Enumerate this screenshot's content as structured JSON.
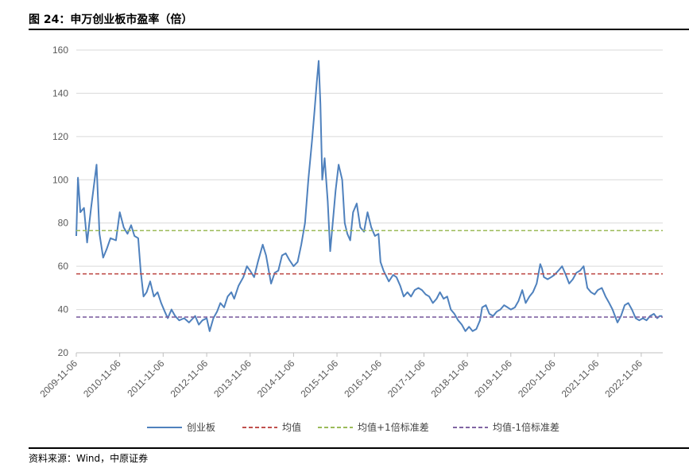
{
  "figure": {
    "title": "图 24：申万创业板市盈率（倍）",
    "source": "资料来源：Wind，中原证券"
  },
  "colors": {
    "series": "#4f81bd",
    "mean": "#c0504d",
    "plus1": "#9bbb59",
    "minus1": "#8064a2",
    "grid": "#d9d9d9"
  },
  "chart_data": {
    "type": "line",
    "ylim": [
      20,
      160
    ],
    "yticks": [
      20,
      40,
      60,
      80,
      100,
      120,
      140,
      160
    ],
    "xlim": [
      "2009-11-06",
      "2023-05-06"
    ],
    "xticks": [
      "2009-11-06",
      "2010-11-06",
      "2011-11-06",
      "2012-11-06",
      "2013-11-06",
      "2014-11-06",
      "2015-11-06",
      "2016-11-06",
      "2017-11-06",
      "2018-11-06",
      "2019-11-06",
      "2020-11-06",
      "2021-11-06",
      "2022-11-06"
    ],
    "grid": "horizontal",
    "legend_position": "bottom",
    "series": [
      {
        "name": "创业板",
        "style": "solid",
        "points": [
          [
            "2009-11-06",
            74
          ],
          [
            "2009-11-20",
            101
          ],
          [
            "2009-12-10",
            85
          ],
          [
            "2010-01-10",
            87
          ],
          [
            "2010-02-05",
            71
          ],
          [
            "2010-03-10",
            87
          ],
          [
            "2010-04-25",
            107
          ],
          [
            "2010-05-20",
            75
          ],
          [
            "2010-06-20",
            64
          ],
          [
            "2010-07-20",
            68
          ],
          [
            "2010-08-20",
            73
          ],
          [
            "2010-10-05",
            72
          ],
          [
            "2010-11-06",
            85
          ],
          [
            "2010-12-10",
            78
          ],
          [
            "2011-01-10",
            75
          ],
          [
            "2011-02-10",
            79
          ],
          [
            "2011-03-10",
            74
          ],
          [
            "2011-04-10",
            73
          ],
          [
            "2011-05-01",
            58
          ],
          [
            "2011-05-25",
            46
          ],
          [
            "2011-06-20",
            48
          ],
          [
            "2011-07-20",
            53
          ],
          [
            "2011-08-20",
            46
          ],
          [
            "2011-09-20",
            48
          ],
          [
            "2011-10-20",
            43
          ],
          [
            "2011-11-20",
            39
          ],
          [
            "2011-12-15",
            36
          ],
          [
            "2012-01-15",
            40
          ],
          [
            "2012-02-15",
            37
          ],
          [
            "2012-03-20",
            35
          ],
          [
            "2012-05-01",
            36
          ],
          [
            "2012-06-10",
            34
          ],
          [
            "2012-08-01",
            37
          ],
          [
            "2012-09-01",
            33
          ],
          [
            "2012-10-01",
            35
          ],
          [
            "2012-11-06",
            36
          ],
          [
            "2012-12-01",
            30
          ],
          [
            "2013-01-01",
            36
          ],
          [
            "2013-02-01",
            39
          ],
          [
            "2013-03-01",
            43
          ],
          [
            "2013-04-01",
            41
          ],
          [
            "2013-05-01",
            46
          ],
          [
            "2013-06-01",
            48
          ],
          [
            "2013-06-25",
            45
          ],
          [
            "2013-08-01",
            51
          ],
          [
            "2013-09-10",
            55
          ],
          [
            "2013-10-10",
            60
          ],
          [
            "2013-11-06",
            58
          ],
          [
            "2013-12-10",
            55
          ],
          [
            "2014-01-10",
            62
          ],
          [
            "2014-02-20",
            70
          ],
          [
            "2014-03-20",
            65
          ],
          [
            "2014-05-01",
            52
          ],
          [
            "2014-06-01",
            57
          ],
          [
            "2014-07-01",
            58
          ],
          [
            "2014-08-01",
            65
          ],
          [
            "2014-09-01",
            66
          ],
          [
            "2014-10-01",
            63
          ],
          [
            "2014-11-06",
            60
          ],
          [
            "2014-12-10",
            62
          ],
          [
            "2015-01-10",
            70
          ],
          [
            "2015-02-10",
            80
          ],
          [
            "2015-03-10",
            100
          ],
          [
            "2015-04-10",
            118
          ],
          [
            "2015-05-01",
            132
          ],
          [
            "2015-05-20",
            145
          ],
          [
            "2015-06-05",
            155
          ],
          [
            "2015-06-20",
            135
          ],
          [
            "2015-07-05",
            100
          ],
          [
            "2015-07-25",
            110
          ],
          [
            "2015-08-20",
            90
          ],
          [
            "2015-09-10",
            67
          ],
          [
            "2015-10-01",
            80
          ],
          [
            "2015-10-25",
            95
          ],
          [
            "2015-11-20",
            107
          ],
          [
            "2015-12-20",
            100
          ],
          [
            "2016-01-10",
            80
          ],
          [
            "2016-02-01",
            75
          ],
          [
            "2016-02-25",
            72
          ],
          [
            "2016-03-20",
            85
          ],
          [
            "2016-04-20",
            89
          ],
          [
            "2016-05-20",
            78
          ],
          [
            "2016-06-20",
            76
          ],
          [
            "2016-07-20",
            85
          ],
          [
            "2016-08-20",
            78
          ],
          [
            "2016-09-20",
            74
          ],
          [
            "2016-10-20",
            75
          ],
          [
            "2016-11-06",
            62
          ],
          [
            "2016-12-01",
            58
          ],
          [
            "2017-01-15",
            53
          ],
          [
            "2017-02-20",
            56
          ],
          [
            "2017-03-20",
            55
          ],
          [
            "2017-04-20",
            51
          ],
          [
            "2017-05-20",
            46
          ],
          [
            "2017-06-20",
            48
          ],
          [
            "2017-07-20",
            46
          ],
          [
            "2017-08-20",
            49
          ],
          [
            "2017-09-20",
            50
          ],
          [
            "2017-10-20",
            49
          ],
          [
            "2017-11-20",
            47
          ],
          [
            "2017-12-20",
            46
          ],
          [
            "2018-01-20",
            43
          ],
          [
            "2018-02-20",
            45
          ],
          [
            "2018-03-20",
            48
          ],
          [
            "2018-04-20",
            45
          ],
          [
            "2018-05-20",
            46
          ],
          [
            "2018-06-20",
            40
          ],
          [
            "2018-07-20",
            38
          ],
          [
            "2018-08-20",
            35
          ],
          [
            "2018-09-20",
            33
          ],
          [
            "2018-10-20",
            30
          ],
          [
            "2018-11-20",
            32
          ],
          [
            "2018-12-20",
            30
          ],
          [
            "2019-01-20",
            31
          ],
          [
            "2019-02-20",
            35
          ],
          [
            "2019-03-10",
            41
          ],
          [
            "2019-04-10",
            42
          ],
          [
            "2019-05-10",
            38
          ],
          [
            "2019-06-10",
            37
          ],
          [
            "2019-07-10",
            39
          ],
          [
            "2019-08-10",
            40
          ],
          [
            "2019-09-10",
            42
          ],
          [
            "2019-10-10",
            41
          ],
          [
            "2019-11-06",
            40
          ],
          [
            "2019-12-10",
            41
          ],
          [
            "2020-01-10",
            44
          ],
          [
            "2020-02-10",
            49
          ],
          [
            "2020-03-10",
            43
          ],
          [
            "2020-04-10",
            46
          ],
          [
            "2020-05-10",
            48
          ],
          [
            "2020-06-10",
            52
          ],
          [
            "2020-07-10",
            61
          ],
          [
            "2020-07-25",
            59
          ],
          [
            "2020-08-10",
            55
          ],
          [
            "2020-09-10",
            54
          ],
          [
            "2020-10-10",
            55
          ],
          [
            "2020-11-06",
            56
          ],
          [
            "2020-12-10",
            58
          ],
          [
            "2021-01-10",
            60
          ],
          [
            "2021-02-10",
            56
          ],
          [
            "2021-03-10",
            52
          ],
          [
            "2021-04-10",
            54
          ],
          [
            "2021-05-10",
            57
          ],
          [
            "2021-06-10",
            58
          ],
          [
            "2021-07-10",
            60
          ],
          [
            "2021-08-10",
            50
          ],
          [
            "2021-09-10",
            48
          ],
          [
            "2021-10-10",
            47
          ],
          [
            "2021-11-06",
            49
          ],
          [
            "2021-12-10",
            50
          ],
          [
            "2022-01-10",
            46
          ],
          [
            "2022-02-10",
            43
          ],
          [
            "2022-03-10",
            40
          ],
          [
            "2022-04-20",
            34
          ],
          [
            "2022-05-20",
            37
          ],
          [
            "2022-06-20",
            42
          ],
          [
            "2022-07-20",
            43
          ],
          [
            "2022-08-20",
            40
          ],
          [
            "2022-09-20",
            36
          ],
          [
            "2022-10-20",
            35
          ],
          [
            "2022-11-20",
            36
          ],
          [
            "2022-12-20",
            35
          ],
          [
            "2023-01-20",
            37
          ],
          [
            "2023-02-20",
            38
          ],
          [
            "2023-03-20",
            36
          ],
          [
            "2023-04-10",
            37
          ],
          [
            "2023-05-01",
            37
          ]
        ]
      },
      {
        "name": "均值",
        "style": "dashed",
        "y": 56.5
      },
      {
        "name": "均值+1倍标准差",
        "style": "dashed",
        "y": 76.5
      },
      {
        "name": "均值-1倍标准差",
        "style": "dashed",
        "y": 36.5
      }
    ]
  }
}
